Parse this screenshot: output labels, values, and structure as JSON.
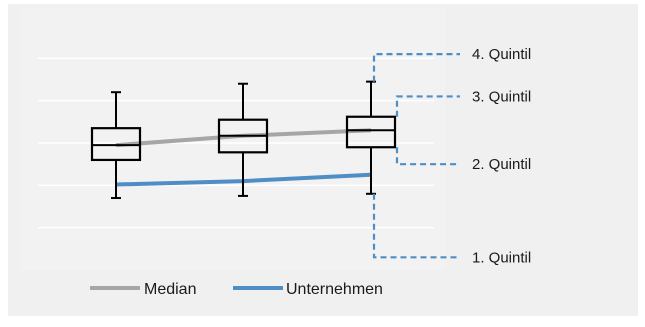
{
  "colors": {
    "panel_bg": "#f0f0f0",
    "plot_bg": "#f2f2f2",
    "gridline": "#ffffff",
    "box_stroke": "#000000",
    "median_line": "#a6a6a6",
    "company_line": "#4f8ec5",
    "quintil_bracket": "#4f8ec5",
    "label_text": "#1a1a1a"
  },
  "chart_data": {
    "type": "box",
    "title": "",
    "xlabel": "",
    "ylabel": "",
    "x_tick_labels": [],
    "y_tick_labels": [],
    "grid": true,
    "ylim": [
      0,
      6
    ],
    "gridline_values": [
      1,
      2,
      3,
      4,
      5
    ],
    "boxes": [
      {
        "whisker_high": 4.2,
        "q3": 3.35,
        "median": 2.95,
        "q1": 2.6,
        "whisker_low": 1.7
      },
      {
        "whisker_high": 4.4,
        "q3": 3.55,
        "median": 3.17,
        "q1": 2.78,
        "whisker_low": 1.75
      },
      {
        "whisker_high": 4.45,
        "q3": 3.62,
        "median": 3.3,
        "q1": 2.9,
        "whisker_low": 1.8
      }
    ],
    "series": [
      {
        "name": "Median",
        "values": [
          2.95,
          3.17,
          3.3
        ]
      },
      {
        "name": "Unternehmen",
        "values": [
          2.02,
          2.1,
          2.25
        ]
      }
    ],
    "quintil_annotations": [
      {
        "label": "4. Quintil",
        "lower": 4.45,
        "upper": 5.1
      },
      {
        "label": "3. Quintil",
        "lower": 3.62,
        "upper": 4.1
      },
      {
        "label": "2. Quintil",
        "lower": 2.5,
        "upper": 2.9
      },
      {
        "label": "1. Quintil",
        "lower": 0.3,
        "upper": 1.8
      }
    ],
    "legend": {
      "position": "bottom-left",
      "entries": [
        "Median",
        "Unternehmen"
      ]
    }
  }
}
